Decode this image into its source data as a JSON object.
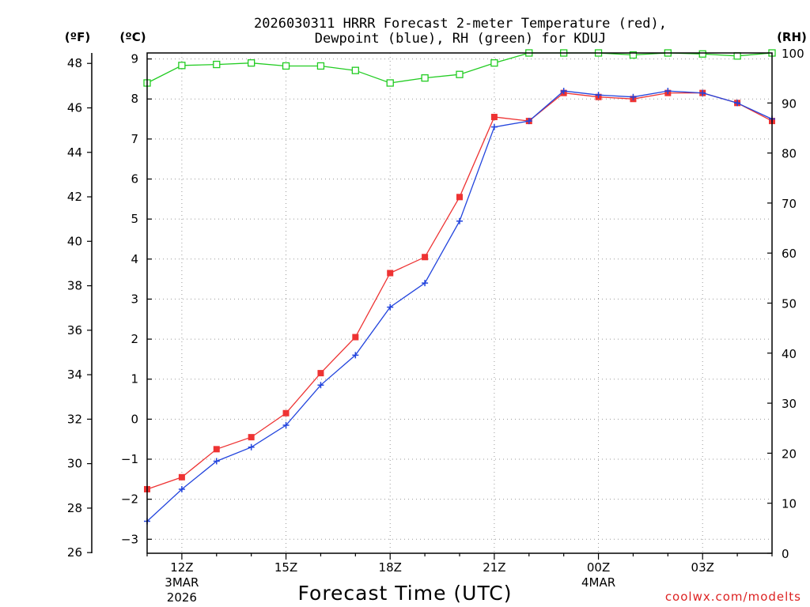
{
  "chart_data": {
    "type": "line",
    "title_line1": "2026030311 HRRR Forecast 2-meter Temperature (red),",
    "title_line2": "Dewpoint (blue), RH (green) for KDUJ",
    "xlabel": "Forecast Time (UTC)",
    "credit": "coolwx.com/modelts",
    "unit_f": "(ºF)",
    "unit_c": "(ºC)",
    "unit_rh": "(RH)",
    "f_ticks": [
      "26",
      "28",
      "30",
      "32",
      "34",
      "36",
      "38",
      "40",
      "42",
      "44",
      "46",
      "48"
    ],
    "c_ticks": [
      "−3",
      "−2",
      "−1",
      "0",
      "1",
      "2",
      "3",
      "4",
      "5",
      "6",
      "7",
      "8",
      "9"
    ],
    "rh_ticks": [
      "0",
      "10",
      "20",
      "30",
      "40",
      "50",
      "60",
      "70",
      "80",
      "90",
      "100"
    ],
    "x_ticks": [
      {
        "label": "12Z",
        "sub1": "3MAR",
        "sub2": "2026"
      },
      {
        "label": "15Z",
        "sub1": "",
        "sub2": ""
      },
      {
        "label": "18Z",
        "sub1": "",
        "sub2": ""
      },
      {
        "label": "21Z",
        "sub1": "",
        "sub2": ""
      },
      {
        "label": "00Z",
        "sub1": "4MAR",
        "sub2": ""
      },
      {
        "label": "03Z",
        "sub1": "",
        "sub2": ""
      }
    ],
    "hours_start": 11,
    "hours_end": 29,
    "c_range": [
      -3.35,
      9.15
    ],
    "rh_range": [
      0,
      100
    ],
    "series": [
      {
        "name": "Temperature",
        "unit": "C",
        "color": "#ee3333",
        "marker": "filled-square",
        "values": [
          -1.75,
          -1.45,
          -0.75,
          -0.45,
          0.15,
          1.15,
          2.05,
          3.65,
          4.05,
          5.55,
          7.55,
          7.45,
          8.15,
          8.05,
          8.0,
          8.15,
          8.15,
          7.9,
          7.45
        ]
      },
      {
        "name": "Dewpoint",
        "unit": "C",
        "color": "#2244dd",
        "marker": "plus",
        "values": [
          -2.55,
          -1.75,
          -1.05,
          -0.7,
          -0.15,
          0.85,
          1.6,
          2.8,
          3.4,
          4.95,
          7.3,
          7.45,
          8.2,
          8.1,
          8.05,
          8.2,
          8.15,
          7.9,
          7.5
        ]
      },
      {
        "name": "RH",
        "unit": "%",
        "color": "#22cc22",
        "marker": "open-square",
        "values": [
          94,
          97.5,
          97.7,
          98,
          97.4,
          97.4,
          96.5,
          94,
          95,
          95.7,
          98,
          100,
          100,
          100,
          99.6,
          100,
          99.8,
          99.4,
          100
        ]
      }
    ]
  }
}
